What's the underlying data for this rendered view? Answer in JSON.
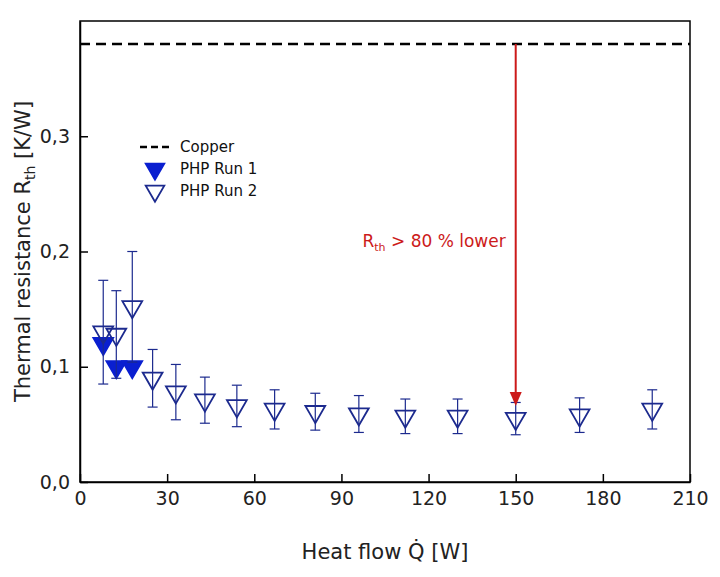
{
  "chart_data": {
    "type": "scatter",
    "xlabel": "Heat flow Q̇ [W]",
    "ylabel": [
      {
        "text": "Thermal resistance R"
      },
      {
        "text": "th",
        "sub": true
      },
      {
        "text": " [K/W]"
      }
    ],
    "xlim": [
      0,
      210
    ],
    "xticks": [
      0,
      30,
      60,
      90,
      120,
      150,
      180,
      210
    ],
    "ylim": [
      0,
      0.4
    ],
    "yticks": [
      {
        "value": 0,
        "label": "0,0"
      },
      {
        "value": 0.1,
        "label": "0,1"
      },
      {
        "value": 0.2,
        "label": "0,2"
      },
      {
        "value": 0.3,
        "label": "0,3"
      }
    ],
    "legend": "upper left",
    "series": [
      {
        "name": "Copper",
        "type": "hline",
        "color": "#000000",
        "line_style": "dashed",
        "values": [
          0.38
        ]
      },
      {
        "name": "PHP Run 1",
        "type": "scatter",
        "marker": "triangle-down",
        "color": "#0a1fd0",
        "x": [
          8,
          12.5,
          18
        ],
        "values": [
          0.12,
          0.1,
          0.1
        ]
      },
      {
        "name": "PHP Run 2",
        "type": "scatter",
        "marker": "triangle-down-open",
        "color": "#1c2a8e",
        "x": [
          8,
          12.5,
          18,
          25,
          33,
          43,
          54,
          67,
          81,
          96,
          112,
          130,
          150,
          172,
          197
        ],
        "values": [
          0.13,
          0.128,
          0.152,
          0.09,
          0.078,
          0.071,
          0.066,
          0.063,
          0.061,
          0.059,
          0.057,
          0.057,
          0.055,
          0.058,
          0.063
        ],
        "errors": [
          0.045,
          0.038,
          0.048,
          0.025,
          0.024,
          0.02,
          0.018,
          0.017,
          0.016,
          0.016,
          0.015,
          0.015,
          0.014,
          0.015,
          0.017
        ]
      }
    ],
    "annotation": {
      "text": [
        {
          "text": "R"
        },
        {
          "text": "th",
          "sub": true
        },
        {
          "text": " > 80 % lower"
        }
      ],
      "color": "#cc1a1a",
      "x": 150,
      "y_from": 0.38,
      "y_to": 0.066
    }
  }
}
